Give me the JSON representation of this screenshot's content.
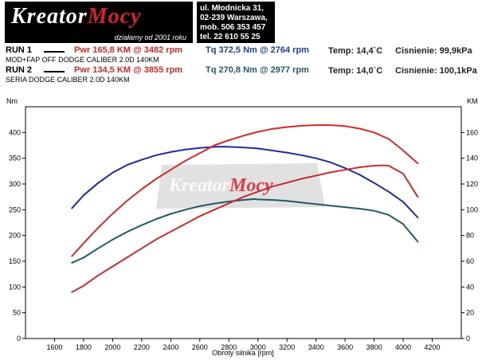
{
  "logo": {
    "text_white": "Kreator",
    "text_red": "Mocy",
    "subtitle": "działamy od 2001 roku"
  },
  "address": [
    "ul. Młodnicka 31,",
    "02-239  Warszawa,",
    "mob.  506 353 457",
    "tel.  22 610 55 25"
  ],
  "runs": [
    {
      "label": "RUN 1",
      "power": "Pwr  165,8 KM @ 3482 rpm",
      "torque": "Tq  372,5 Nm @ 2764 rpm",
      "temp": "Temp: 14,4`C",
      "pressure": "Cisnienie: 99,9kPa",
      "description": "MOD+FAP OFF DODGE CALIBER 2.0D 140KM"
    },
    {
      "label": "RUN 2",
      "power": "Pwr  134,5 KM @ 3855 rpm",
      "torque": "Tq  270,8 Nm @ 2977 rpm",
      "temp": "Temp: 14,0`C",
      "pressure": "Cisnienie: 100,1kPa",
      "description": "SERIA DODGE CALIBER 2.0D 140KM"
    }
  ],
  "colors": {
    "power_run1": "#d42a2a",
    "power_run2": "#c43030",
    "torque_run1": "#1f2a9e",
    "torque_run2": "#1f5a66"
  },
  "watermark": {
    "text_white": "Kreator",
    "text_red": "Mocy"
  },
  "chart_data": {
    "type": "line",
    "xlabel": "Obroty silnika [rpm]",
    "ylabel_left": "Nm",
    "ylabel_right": "KM",
    "xlim": [
      1400,
      4400
    ],
    "ylim_left": [
      0,
      450
    ],
    "ylim_right": [
      0,
      180
    ],
    "x_ticks": [
      1600,
      1800,
      2000,
      2200,
      2400,
      2600,
      2800,
      3000,
      3200,
      3400,
      3600,
      3800,
      4000,
      4200
    ],
    "y_ticks_left": [
      0,
      50,
      100,
      150,
      200,
      250,
      300,
      350,
      400
    ],
    "y_ticks_right": [
      0,
      20,
      40,
      60,
      80,
      100,
      120,
      140,
      160
    ],
    "grid": false,
    "series": [
      {
        "axis": "left",
        "color_key": "torque_run1",
        "x": [
          1720,
          1800,
          1900,
          2000,
          2100,
          2200,
          2300,
          2400,
          2500,
          2600,
          2700,
          2764,
          2800,
          2900,
          3000,
          3100,
          3200,
          3300,
          3400,
          3500,
          3600,
          3700,
          3800,
          3900,
          4000,
          4100
        ],
        "y": [
          253,
          278,
          302,
          322,
          337,
          347,
          356,
          362,
          367,
          370,
          372,
          372.5,
          372,
          371,
          369,
          365,
          361,
          356,
          350,
          342,
          331,
          318,
          302,
          285,
          265,
          235
        ]
      },
      {
        "axis": "left",
        "color_key": "torque_run2",
        "x": [
          1720,
          1800,
          1900,
          2000,
          2100,
          2200,
          2300,
          2400,
          2500,
          2600,
          2700,
          2800,
          2900,
          2977,
          3000,
          3100,
          3200,
          3300,
          3400,
          3500,
          3600,
          3700,
          3800,
          3900,
          4000,
          4100
        ],
        "y": [
          147,
          157,
          175,
          192,
          207,
          220,
          232,
          242,
          250,
          257,
          262,
          266,
          269,
          270.8,
          270,
          269,
          267,
          264,
          261,
          258,
          255,
          252,
          248,
          240,
          222,
          188
        ]
      },
      {
        "axis": "right",
        "color_key": "power_run1",
        "x": [
          1720,
          1800,
          1900,
          2000,
          2100,
          2200,
          2300,
          2400,
          2500,
          2600,
          2700,
          2800,
          2900,
          3000,
          3100,
          3200,
          3300,
          3400,
          3482,
          3500,
          3600,
          3700,
          3800,
          3900,
          4000,
          4100
        ],
        "y": [
          64,
          74,
          86,
          97,
          107,
          116,
          124,
          131,
          138,
          144,
          150,
          154,
          157.5,
          160.5,
          162.8,
          164.2,
          165.2,
          165.7,
          165.8,
          165.7,
          165,
          163,
          160,
          155,
          146,
          136
        ]
      },
      {
        "axis": "right",
        "color_key": "power_run2",
        "x": [
          1720,
          1800,
          1900,
          2000,
          2100,
          2200,
          2300,
          2400,
          2500,
          2600,
          2700,
          2800,
          2900,
          3000,
          3100,
          3200,
          3300,
          3400,
          3500,
          3600,
          3700,
          3800,
          3855,
          3900,
          4000,
          4100
        ],
        "y": [
          36,
          41,
          49,
          56,
          63,
          70,
          77,
          83,
          89,
          95,
          100,
          105,
          110,
          114,
          118,
          121,
          124,
          126.5,
          129,
          131,
          133,
          134.2,
          134.5,
          134.2,
          128,
          110
        ]
      }
    ]
  }
}
